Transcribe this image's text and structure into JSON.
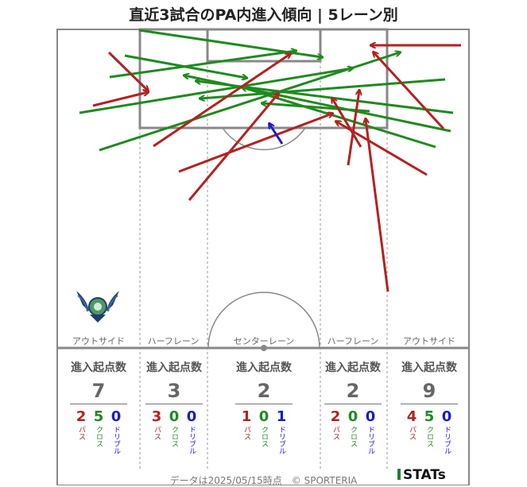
{
  "title": "直近3試合のPA内進入傾向 | 5レーン別",
  "lanes": [
    {
      "name": "アウトサイド",
      "header": "進入起点数",
      "total": "7",
      "pass": "2",
      "cross": "5",
      "dribble": "0"
    },
    {
      "name": "ハーフレーン",
      "header": "進入起点数",
      "total": "3",
      "pass": "3",
      "cross": "0",
      "dribble": "0"
    },
    {
      "name": "センターレーン",
      "header": "進入起点数",
      "total": "2",
      "pass": "1",
      "cross": "0",
      "dribble": "1"
    },
    {
      "name": "ハーフレーン",
      "header": "進入起点数",
      "total": "2",
      "pass": "2",
      "cross": "0",
      "dribble": "0"
    },
    {
      "name": "アウトサイド",
      "header": "進入起点数",
      "total": "9",
      "pass": "4",
      "cross": "5",
      "dribble": "0"
    }
  ],
  "labels": {
    "pass": "パス",
    "cross": "クロス",
    "dribble": "ドリブル"
  },
  "footer": "データは2025/05/15時点　© SPORTERIA",
  "logo_text": "STATs",
  "colors": {
    "pass": "#b22222",
    "cross": "#1f8a1f",
    "dribble": "#1a1acc",
    "pitch_line": "#888888"
  },
  "icons": {
    "team_crest": "winged-crest-icon"
  }
}
